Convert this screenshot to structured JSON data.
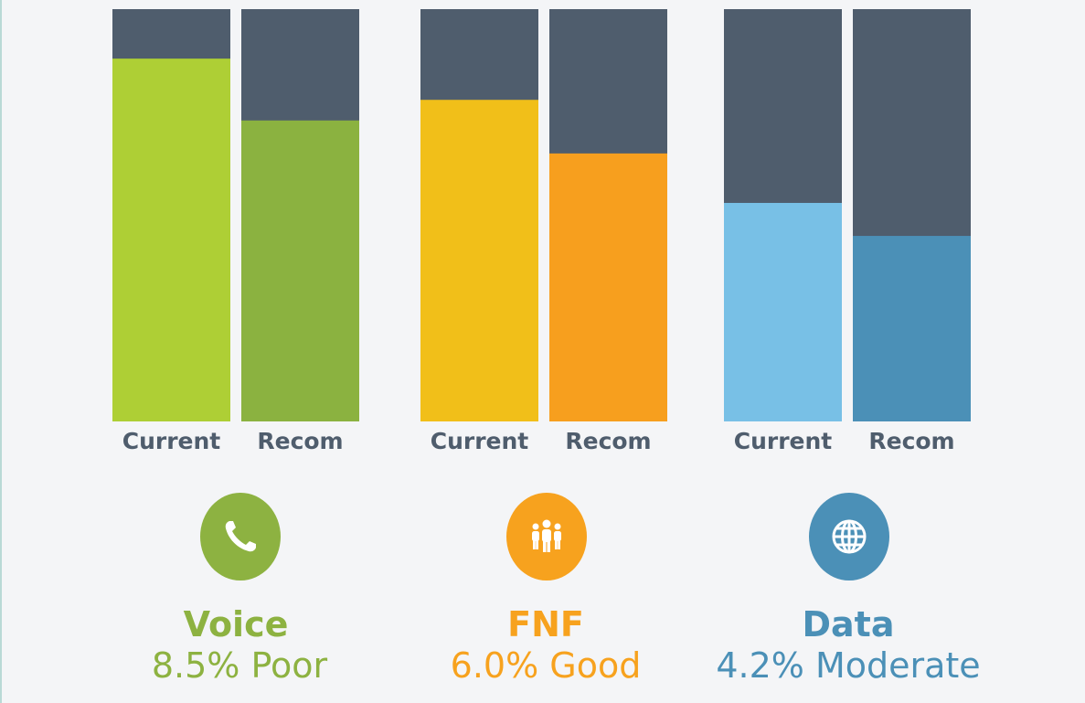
{
  "chart_data": {
    "type": "bar",
    "stacked": true,
    "ylim": [
      0,
      100
    ],
    "track_color": "#4f5d6d",
    "groups": [
      {
        "name": "Voice",
        "metric": "8.5% Poor",
        "color": "#8db241",
        "icon": "phone-icon",
        "bars": [
          {
            "label": "Current",
            "value": 88,
            "color": "#aecf35"
          },
          {
            "label": "Recom",
            "value": 73,
            "color": "#8bb240"
          }
        ]
      },
      {
        "name": "FNF",
        "metric": "6.0% Good",
        "color": "#f7a21e",
        "icon": "people-group-icon",
        "bars": [
          {
            "label": "Current",
            "value": 78,
            "color": "#f1bf19"
          },
          {
            "label": "Recom",
            "value": 65,
            "color": "#f79f1e"
          }
        ]
      },
      {
        "name": "Data",
        "metric": "4.2% Moderate",
        "color": "#4b90b7",
        "icon": "globe-icon",
        "bars": [
          {
            "label": "Current",
            "value": 53,
            "color": "#78c0e6"
          },
          {
            "label": "Recom",
            "value": 45,
            "color": "#4b90b7"
          }
        ]
      }
    ]
  }
}
